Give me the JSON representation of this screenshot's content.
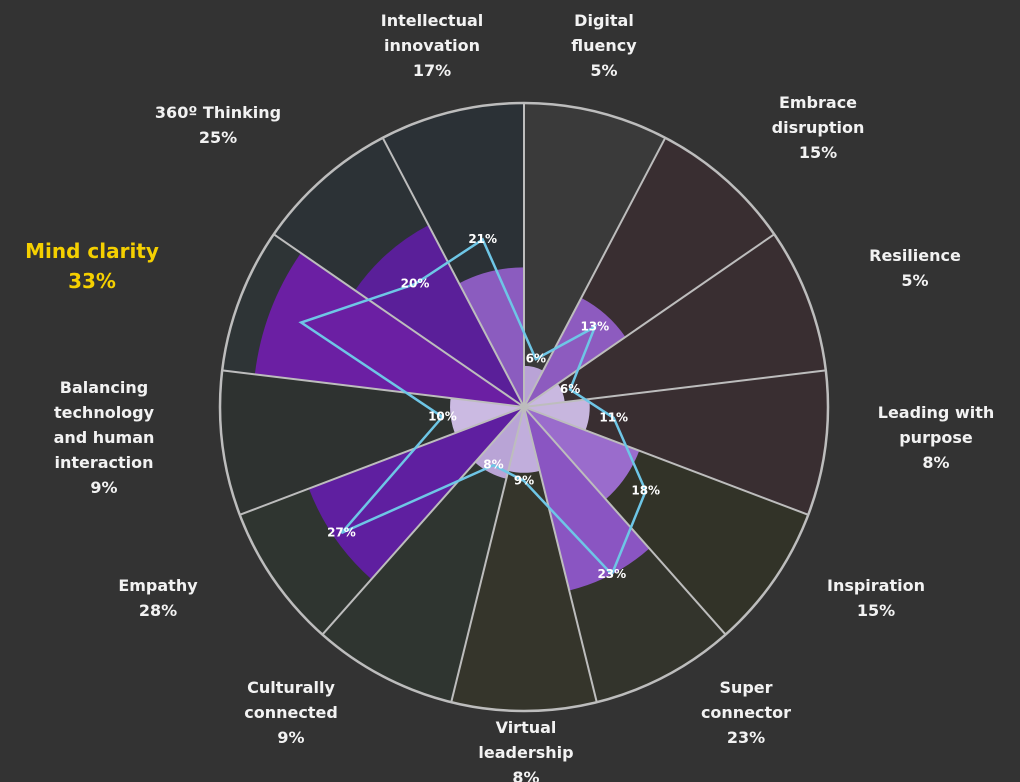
{
  "chart_data": {
    "type": "polar_area",
    "categories": [
      "Digital\nfluency",
      "Embrace\ndisruption",
      "Resilience",
      "Leading with\npurpose",
      "Inspiration",
      "Super\nconnector",
      "Virtual\nleadership",
      "Culturally\nconnected",
      "Empathy",
      "Balancing\ntechnology\nand human\ninteraction",
      "Mind clarity",
      "360º Thinking",
      "Intellectual\ninnovation"
    ],
    "rlim": [
      0,
      37
    ],
    "background_colors": [
      "#3a3a3a",
      "#392e31",
      "#392e31",
      "#392e31",
      "#323328",
      "#33342c",
      "#35352b",
      "#2f3530",
      "#2f3530",
      "#2e3230",
      "#2e3436",
      "#2c3236",
      "#2b3136"
    ],
    "highlight": {
      "index": 10,
      "color": "#f5d000"
    },
    "series": [
      {
        "name": "Sector",
        "type": "polar_area",
        "colors": [
          "#b9a3d6",
          "#8d5bbf",
          "#c9b8e0",
          "#c7b6de",
          "#9a6ccc",
          "#8a55c2",
          "#c1aedc",
          "#b9a4d6",
          "#5f1fa0",
          "#cbbae2",
          "#6b1fa3",
          "#5a1f99",
          "#8b5cbf"
        ],
        "values": [
          5,
          15,
          5,
          8,
          15,
          23,
          8,
          9,
          28,
          9,
          33,
          25,
          17
        ],
        "value_labels": [
          "5%",
          "15%",
          "5%",
          "8%",
          "15%",
          "23%",
          "8%",
          "9%",
          "28%",
          "9%",
          "33%",
          "25%",
          "17%"
        ]
      },
      {
        "name": "Line",
        "type": "line",
        "color": "#6ec6e6",
        "values": [
          6,
          13,
          6,
          11,
          18,
          23,
          9,
          8,
          27,
          10,
          29,
          20,
          21
        ],
        "value_labels": [
          "6%",
          "13%",
          "6%",
          "11%",
          "18%",
          "23%",
          "9%",
          "8%",
          "27%",
          "10%",
          null,
          "20%",
          "21%"
        ]
      }
    ]
  }
}
